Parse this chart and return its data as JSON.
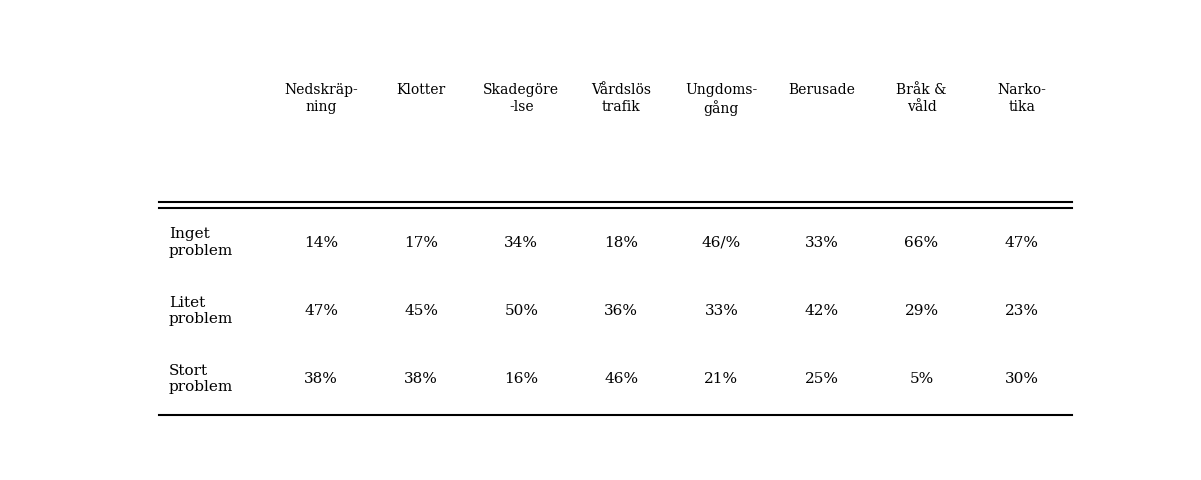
{
  "col_headers": [
    "Nedskräp-\nning",
    "Klotter",
    "Skadegöre\n-lse",
    "Vårdslös\ntrafik",
    "Ungdoms-\ngång",
    "Berusade",
    "Bråk &\nvåld",
    "Narko-\ntika"
  ],
  "row_headers": [
    "Inget\nproblem",
    "Litet\nproblem",
    "Stort\nproblem"
  ],
  "data": [
    [
      "14%",
      "17%",
      "34%",
      "18%",
      "46/%",
      "33%",
      "66%",
      "47%"
    ],
    [
      "47%",
      "45%",
      "50%",
      "36%",
      "33%",
      "42%",
      "29%",
      "23%"
    ],
    [
      "38%",
      "38%",
      "16%",
      "46%",
      "21%",
      "25%",
      "5%",
      "30%"
    ]
  ],
  "background_color": "#ffffff",
  "text_color": "#000000",
  "fontsize": 11,
  "header_fontsize": 10
}
